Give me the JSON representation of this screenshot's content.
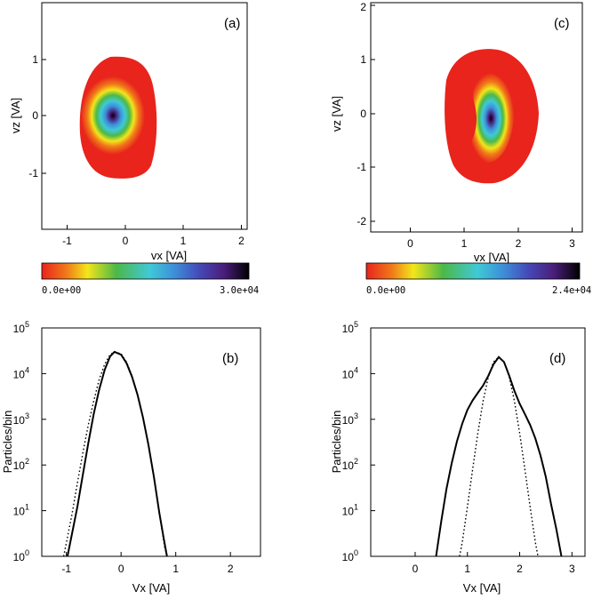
{
  "chart_data": [
    {
      "panel": "(a)",
      "type": "heatmap",
      "xlabel": "vx [VA]",
      "ylabel": "vz [VA]",
      "xlim": [
        -1.45,
        2.3
      ],
      "ylim": [
        -2,
        2
      ],
      "xticks": [
        "-1",
        "0",
        "1",
        "2"
      ],
      "yticks": [
        "-1",
        "0",
        "1"
      ],
      "colorbar": {
        "min_label": "0.0e+00",
        "max_label": "3.0e+04",
        "min": 0,
        "max": 30000
      },
      "distribution": {
        "center_vx": -0.18,
        "center_vz": 0.0,
        "peak": 30000
      }
    },
    {
      "panel": "(b)",
      "type": "line",
      "xlabel": "Vx [VA]",
      "ylabel": "Particles/bin",
      "xlim": [
        -1.45,
        2.55
      ],
      "ylim": [
        1,
        100000
      ],
      "yscale": "log",
      "xticks": [
        "-1",
        "0",
        "1",
        "2"
      ],
      "yticks": [
        "10^0",
        "10^1",
        "10^2",
        "10^3",
        "10^4",
        "10^5"
      ],
      "series": [
        {
          "style": "solid",
          "x": [
            -0.98,
            -0.9,
            -0.8,
            -0.7,
            -0.6,
            -0.5,
            -0.4,
            -0.3,
            -0.2,
            -0.12,
            0.0,
            0.1,
            0.2,
            0.3,
            0.4,
            0.5,
            0.6,
            0.7,
            0.78,
            0.84
          ],
          "y": [
            1,
            3,
            12,
            60,
            300,
            1300,
            4500,
            12000,
            24000,
            30000,
            26000,
            17000,
            8500,
            3500,
            1100,
            280,
            55,
            9,
            2.5,
            1
          ]
        },
        {
          "style": "dotted",
          "x": [
            -1.05,
            -1.0,
            -0.9,
            -0.8,
            -0.7,
            -0.6,
            -0.5,
            -0.4,
            -0.3,
            -0.2,
            -0.12,
            0.0,
            0.1,
            0.2,
            0.3,
            0.4,
            0.5,
            0.6,
            0.7,
            0.8,
            0.85
          ],
          "y": [
            1,
            2,
            8,
            40,
            180,
            750,
            2500,
            7500,
            16000,
            26000,
            30000,
            27000,
            18000,
            9000,
            3500,
            1100,
            270,
            55,
            9,
            1.5,
            1
          ]
        }
      ]
    },
    {
      "panel": "(c)",
      "type": "heatmap",
      "xlabel": "vx [VA]",
      "ylabel": "vz [VA]",
      "xlim": [
        -0.8,
        3.15
      ],
      "ylim": [
        -2.2,
        2.15
      ],
      "xticks": [
        "0",
        "1",
        "2",
        "3"
      ],
      "yticks": [
        "-2",
        "-1",
        "0",
        "1",
        "2"
      ],
      "colorbar": {
        "min_label": "0.0e+00",
        "max_label": "2.4e+04",
        "min": 0,
        "max": 24000
      },
      "distribution": {
        "center_vx": 1.55,
        "center_vz": 0.0,
        "peak": 24000
      }
    },
    {
      "panel": "(d)",
      "type": "line",
      "xlabel": "Vx [VA]",
      "ylabel": "Particles/bin",
      "xlim": [
        -0.85,
        3.25
      ],
      "ylim": [
        1,
        100000
      ],
      "yscale": "log",
      "xticks": [
        "0",
        "1",
        "2",
        "3"
      ],
      "yticks": [
        "10^0",
        "10^1",
        "10^2",
        "10^3",
        "10^4",
        "10^5"
      ],
      "series": [
        {
          "style": "solid",
          "x": [
            0.4,
            0.5,
            0.6,
            0.7,
            0.8,
            0.9,
            1.0,
            1.1,
            1.2,
            1.3,
            1.4,
            1.5,
            1.6,
            1.7,
            1.8,
            1.9,
            2.0,
            2.1,
            2.2,
            2.3,
            2.4,
            2.5,
            2.6,
            2.7,
            2.8
          ],
          "y": [
            1,
            6,
            30,
            110,
            330,
            800,
            1600,
            2600,
            3800,
            5500,
            9000,
            16000,
            23000,
            18000,
            9000,
            4200,
            2200,
            1300,
            750,
            380,
            160,
            55,
            14,
            4,
            1
          ]
        },
        {
          "style": "dotted",
          "x": [
            0.85,
            0.9,
            1.0,
            1.1,
            1.2,
            1.3,
            1.4,
            1.5,
            1.6,
            1.7,
            1.8,
            1.9,
            2.0,
            2.1,
            2.2,
            2.3,
            2.35
          ],
          "y": [
            1,
            2,
            12,
            80,
            500,
            2500,
            8500,
            18000,
            23000,
            18000,
            8500,
            2500,
            500,
            80,
            12,
            2,
            1
          ]
        }
      ]
    }
  ]
}
